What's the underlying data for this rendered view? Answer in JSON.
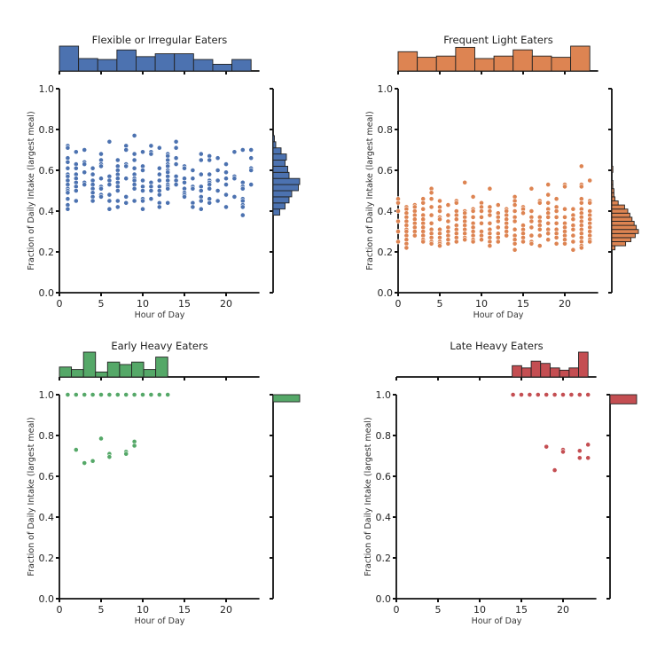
{
  "chart_data": [
    {
      "type": "scatter",
      "title": "Flexible or Irregular Eaters",
      "xlabel": "Hour of Day",
      "ylabel": "Fraction of Daily Intake (largest meal)",
      "xlim": [
        0,
        24
      ],
      "ylim": [
        0,
        1
      ],
      "xticks": [
        "0",
        "5",
        "10",
        "15",
        "20"
      ],
      "yticks": [
        "0.0",
        "0.2",
        "0.4",
        "0.6",
        "0.8",
        "1.0"
      ],
      "color": "#4c72b0",
      "marginal_x_hist": {
        "bin_edges": [
          0,
          2.3,
          4.6,
          6.9,
          9.2,
          11.5,
          13.8,
          16.1,
          18.4,
          20.7,
          23
        ],
        "counts": [
          26,
          13,
          12,
          22,
          15,
          18,
          18,
          12,
          7,
          12
        ]
      },
      "marginal_y_hist": {
        "bin_edges": [
          0.38,
          0.41,
          0.44,
          0.47,
          0.5,
          0.53,
          0.56,
          0.59,
          0.62,
          0.65,
          0.68,
          0.71,
          0.74,
          0.77
        ],
        "counts": [
          5,
          9,
          12,
          14,
          19,
          20,
          12,
          11,
          9,
          10,
          6,
          2,
          1
        ]
      },
      "points": [
        {
          "hour": 1,
          "values": [
            0.72,
            0.71,
            0.66,
            0.64,
            0.61,
            0.58,
            0.57,
            0.55,
            0.53,
            0.51,
            0.5,
            0.49,
            0.46,
            0.43,
            0.41
          ]
        },
        {
          "hour": 2,
          "values": [
            0.69,
            0.63,
            0.61,
            0.58,
            0.56,
            0.54,
            0.52,
            0.5,
            0.45
          ]
        },
        {
          "hour": 3,
          "values": [
            0.7,
            0.64,
            0.63,
            0.59,
            0.54,
            0.53
          ]
        },
        {
          "hour": 4,
          "values": [
            0.61,
            0.58,
            0.55,
            0.53,
            0.51,
            0.49,
            0.47,
            0.45
          ]
        },
        {
          "hour": 5,
          "values": [
            0.68,
            0.65,
            0.63,
            0.62,
            0.56,
            0.52,
            0.51,
            0.48,
            0.47
          ]
        },
        {
          "hour": 6,
          "values": [
            0.74,
            0.57,
            0.55,
            0.53,
            0.48,
            0.45,
            0.41
          ]
        },
        {
          "hour": 7,
          "values": [
            0.65,
            0.62,
            0.6,
            0.58,
            0.56,
            0.54,
            0.52,
            0.5,
            0.45,
            0.42
          ]
        },
        {
          "hour": 8,
          "values": [
            0.72,
            0.7,
            0.63,
            0.62,
            0.56,
            0.47,
            0.44
          ]
        },
        {
          "hour": 9,
          "values": [
            0.77,
            0.68,
            0.65,
            0.61,
            0.58,
            0.56,
            0.55,
            0.53,
            0.51,
            0.45
          ]
        },
        {
          "hour": 10,
          "values": [
            0.69,
            0.62,
            0.6,
            0.55,
            0.52,
            0.5,
            0.46,
            0.45,
            0.41
          ]
        },
        {
          "hour": 11,
          "values": [
            0.72,
            0.69,
            0.68,
            0.54,
            0.52,
            0.5,
            0.46
          ]
        },
        {
          "hour": 12,
          "values": [
            0.71,
            0.61,
            0.58,
            0.55,
            0.52,
            0.5,
            0.48,
            0.44,
            0.42
          ]
        },
        {
          "hour": 13,
          "values": [
            0.68,
            0.67,
            0.65,
            0.63,
            0.62,
            0.6,
            0.59,
            0.57,
            0.55,
            0.53,
            0.52,
            0.51,
            0.44
          ]
        },
        {
          "hour": 14,
          "values": [
            0.74,
            0.71,
            0.66,
            0.63,
            0.57,
            0.55,
            0.53
          ]
        },
        {
          "hour": 15,
          "values": [
            0.62,
            0.61,
            0.56,
            0.54,
            0.51,
            0.49,
            0.48,
            0.47
          ]
        },
        {
          "hour": 16,
          "values": [
            0.6,
            0.56,
            0.52,
            0.51,
            0.44,
            0.42
          ]
        },
        {
          "hour": 17,
          "values": [
            0.68,
            0.65,
            0.58,
            0.52,
            0.5,
            0.47,
            0.45,
            0.41
          ]
        },
        {
          "hour": 18,
          "values": [
            0.67,
            0.65,
            0.58,
            0.55,
            0.54,
            0.53,
            0.51,
            0.46,
            0.44
          ]
        },
        {
          "hour": 19,
          "values": [
            0.66,
            0.6,
            0.55,
            0.5,
            0.45
          ]
        },
        {
          "hour": 20,
          "values": [
            0.63,
            0.59,
            0.56,
            0.53,
            0.48,
            0.42
          ]
        },
        {
          "hour": 21,
          "values": [
            0.69,
            0.57,
            0.56,
            0.47
          ]
        },
        {
          "hour": 22,
          "values": [
            0.7,
            0.54,
            0.52,
            0.51,
            0.46,
            0.45,
            0.43,
            0.42,
            0.38
          ]
        },
        {
          "hour": 23,
          "values": [
            0.7,
            0.66,
            0.61,
            0.6,
            0.53
          ]
        }
      ]
    },
    {
      "type": "scatter",
      "title": "Frequent Light Eaters",
      "xlabel": "Hour of Day",
      "ylabel": "Fraction of Daily Intake (largest meal)",
      "xlim": [
        0,
        24
      ],
      "ylim": [
        0,
        1
      ],
      "xticks": [
        "0",
        "5",
        "10",
        "15",
        "20"
      ],
      "yticks": [
        "0.0",
        "0.2",
        "0.4",
        "0.6",
        "0.8",
        "1.0"
      ],
      "color": "#dd8452",
      "marginal_x_hist": {
        "bin_edges": [
          0,
          2.3,
          4.6,
          6.9,
          9.2,
          11.5,
          13.8,
          16.1,
          18.4,
          20.7,
          23
        ],
        "counts": [
          31,
          22,
          24,
          38,
          20,
          24,
          34,
          24,
          22,
          40
        ]
      },
      "marginal_y_hist": {
        "bin_edges": [
          0.21,
          0.23,
          0.25,
          0.27,
          0.29,
          0.31,
          0.33,
          0.35,
          0.37,
          0.39,
          0.41,
          0.43,
          0.45,
          0.47,
          0.49,
          0.51,
          0.53,
          0.55,
          0.57,
          0.59,
          0.62
        ],
        "counts": [
          3,
          13,
          18,
          22,
          25,
          23,
          21,
          19,
          17,
          15,
          12,
          6,
          3,
          2,
          2,
          1,
          1,
          0,
          0,
          1
        ]
      },
      "points": [
        {
          "hour": 0,
          "values": [
            0.46,
            0.44,
            0.4,
            0.35,
            0.3,
            0.25
          ]
        },
        {
          "hour": 1,
          "values": [
            0.42,
            0.41,
            0.39,
            0.37,
            0.35,
            0.33,
            0.31,
            0.3,
            0.28,
            0.26,
            0.24,
            0.22
          ]
        },
        {
          "hour": 2,
          "values": [
            0.43,
            0.42,
            0.4,
            0.38,
            0.36,
            0.34,
            0.32,
            0.3,
            0.28
          ]
        },
        {
          "hour": 3,
          "values": [
            0.46,
            0.44,
            0.41,
            0.38,
            0.36,
            0.34,
            0.32,
            0.3,
            0.28,
            0.26,
            0.25
          ]
        },
        {
          "hour": 4,
          "values": [
            0.51,
            0.49,
            0.46,
            0.42,
            0.38,
            0.34,
            0.31,
            0.29,
            0.27,
            0.25,
            0.24
          ]
        },
        {
          "hour": 5,
          "values": [
            0.45,
            0.42,
            0.4,
            0.37,
            0.36,
            0.31,
            0.29,
            0.27,
            0.25,
            0.24,
            0.23
          ]
        },
        {
          "hour": 6,
          "values": [
            0.43,
            0.38,
            0.35,
            0.32,
            0.3,
            0.28,
            0.26,
            0.24
          ]
        },
        {
          "hour": 7,
          "values": [
            0.45,
            0.44,
            0.4,
            0.38,
            0.36,
            0.33,
            0.31,
            0.29,
            0.27,
            0.25
          ]
        },
        {
          "hour": 8,
          "values": [
            0.54,
            0.4,
            0.39,
            0.37,
            0.35,
            0.33,
            0.31,
            0.29,
            0.27,
            0.26
          ]
        },
        {
          "hour": 9,
          "values": [
            0.47,
            0.41,
            0.4,
            0.37,
            0.34,
            0.32,
            0.3,
            0.28,
            0.26,
            0.25
          ]
        },
        {
          "hour": 10,
          "values": [
            0.44,
            0.42,
            0.4,
            0.37,
            0.34,
            0.3,
            0.28,
            0.26
          ]
        },
        {
          "hour": 11,
          "values": [
            0.51,
            0.42,
            0.4,
            0.38,
            0.34,
            0.31,
            0.29,
            0.27,
            0.25,
            0.23
          ]
        },
        {
          "hour": 12,
          "values": [
            0.43,
            0.39,
            0.37,
            0.35,
            0.32,
            0.29,
            0.27,
            0.25
          ]
        },
        {
          "hour": 13,
          "values": [
            0.41,
            0.4,
            0.38,
            0.36,
            0.34,
            0.32,
            0.3,
            0.28
          ]
        },
        {
          "hour": 14,
          "values": [
            0.47,
            0.45,
            0.43,
            0.4,
            0.37,
            0.35,
            0.31,
            0.28,
            0.26,
            0.24,
            0.21
          ]
        },
        {
          "hour": 15,
          "values": [
            0.42,
            0.41,
            0.39,
            0.33,
            0.31,
            0.29,
            0.27,
            0.25
          ]
        },
        {
          "hour": 16,
          "values": [
            0.51,
            0.4,
            0.37,
            0.35,
            0.32,
            0.28,
            0.25,
            0.24
          ]
        },
        {
          "hour": 17,
          "values": [
            0.45,
            0.44,
            0.37,
            0.35,
            0.33,
            0.31,
            0.28,
            0.23
          ]
        },
        {
          "hour": 18,
          "values": [
            0.53,
            0.48,
            0.44,
            0.41,
            0.39,
            0.37,
            0.34,
            0.31,
            0.29,
            0.26
          ]
        },
        {
          "hour": 19,
          "values": [
            0.46,
            0.42,
            0.4,
            0.37,
            0.34,
            0.31,
            0.29,
            0.27,
            0.24
          ]
        },
        {
          "hour": 20,
          "values": [
            0.53,
            0.52,
            0.41,
            0.37,
            0.34,
            0.32,
            0.3,
            0.28,
            0.26,
            0.24
          ]
        },
        {
          "hour": 21,
          "values": [
            0.41,
            0.38,
            0.36,
            0.33,
            0.31,
            0.28,
            0.25,
            0.21
          ]
        },
        {
          "hour": 22,
          "values": [
            0.62,
            0.53,
            0.52,
            0.46,
            0.44,
            0.41,
            0.39,
            0.37,
            0.35,
            0.33,
            0.31,
            0.29,
            0.27,
            0.25,
            0.23,
            0.22
          ]
        },
        {
          "hour": 23,
          "values": [
            0.55,
            0.45,
            0.44,
            0.4,
            0.38,
            0.36,
            0.34,
            0.32,
            0.3,
            0.28,
            0.26,
            0.25
          ]
        }
      ]
    },
    {
      "type": "scatter",
      "title": "Early Heavy Eaters",
      "xlabel": "Hour of Day",
      "ylabel": "Fraction of Daily Intake (largest meal)",
      "xlim": [
        0,
        24
      ],
      "ylim": [
        0,
        1
      ],
      "xticks": [
        "0",
        "5",
        "10",
        "15",
        "20"
      ],
      "yticks": [
        "0.0",
        "0.2",
        "0.4",
        "0.6",
        "0.8",
        "1.0"
      ],
      "color": "#55a868",
      "marginal_x_hist": {
        "bin_edges": [
          0,
          1.444,
          2.889,
          4.333,
          5.778,
          7.222,
          8.667,
          10.111,
          11.556,
          13
        ],
        "counts": [
          4,
          3,
          10,
          2,
          6,
          5,
          6,
          3,
          8
        ]
      },
      "marginal_y_hist": {
        "bin_edges": [
          0.965,
          1.0
        ],
        "counts": [
          13
        ]
      },
      "points": [
        {
          "hour": 1,
          "values": [
            1.0
          ]
        },
        {
          "hour": 2,
          "values": [
            1.0,
            0.73
          ]
        },
        {
          "hour": 3,
          "values": [
            1.0,
            0.665
          ]
        },
        {
          "hour": 4,
          "values": [
            1.0,
            0.675
          ]
        },
        {
          "hour": 5,
          "values": [
            1.0,
            0.785
          ]
        },
        {
          "hour": 6,
          "values": [
            1.0,
            0.71,
            0.695
          ]
        },
        {
          "hour": 7,
          "values": [
            1.0
          ]
        },
        {
          "hour": 8,
          "values": [
            1.0,
            0.72,
            0.71
          ]
        },
        {
          "hour": 9,
          "values": [
            1.0,
            0.77,
            0.75
          ]
        },
        {
          "hour": 10,
          "values": [
            1.0
          ]
        },
        {
          "hour": 11,
          "values": [
            1.0
          ]
        },
        {
          "hour": 12,
          "values": [
            1.0
          ]
        },
        {
          "hour": 13,
          "values": [
            1.0
          ]
        }
      ]
    },
    {
      "type": "scatter",
      "title": "Late Heavy Eaters",
      "xlabel": "Hour of Day",
      "ylabel": "Fraction of Daily Intake (largest meal)",
      "xlim": [
        0,
        24
      ],
      "ylim": [
        0,
        1
      ],
      "xticks": [
        "0",
        "5",
        "10",
        "15",
        "20"
      ],
      "yticks": [
        "0.0",
        "0.2",
        "0.4",
        "0.6",
        "0.8",
        "1.0"
      ],
      "color": "#c44e52",
      "marginal_x_hist": {
        "bin_edges": [
          13.9,
          15.04,
          16.18,
          17.31,
          18.45,
          19.59,
          20.73,
          21.86,
          23
        ],
        "counts": [
          5,
          4,
          7,
          6,
          4,
          3,
          4,
          11
        ]
      },
      "marginal_y_hist": {
        "bin_edges": [
          0.955,
          1.0
        ],
        "counts": [
          10
        ]
      },
      "points": [
        {
          "hour": 14,
          "values": [
            1.0
          ]
        },
        {
          "hour": 15,
          "values": [
            1.0
          ]
        },
        {
          "hour": 16,
          "values": [
            1.0
          ]
        },
        {
          "hour": 17,
          "values": [
            1.0
          ]
        },
        {
          "hour": 18,
          "values": [
            1.0,
            0.745
          ]
        },
        {
          "hour": 19,
          "values": [
            1.0,
            0.63
          ]
        },
        {
          "hour": 20,
          "values": [
            1.0,
            0.73,
            0.72
          ]
        },
        {
          "hour": 21,
          "values": [
            1.0
          ]
        },
        {
          "hour": 22,
          "values": [
            1.0,
            0.725,
            0.69
          ]
        },
        {
          "hour": 23,
          "values": [
            1.0,
            0.755,
            0.69
          ]
        }
      ]
    }
  ]
}
